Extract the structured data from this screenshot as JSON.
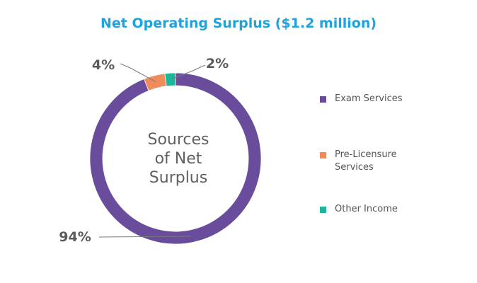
{
  "chart_data": {
    "type": "pie",
    "variant": "donut",
    "title": "Net Operating Surplus ($1.2 million)",
    "center_label": [
      "Sources",
      "of Net",
      "Surplus"
    ],
    "series": [
      {
        "name": "Exam Services",
        "value": 94,
        "label": "94%",
        "color": "#6a4c9c"
      },
      {
        "name": "Pre-Licensure Services",
        "value": 4,
        "label": "4%",
        "color": "#f08c5a"
      },
      {
        "name": "Other Income",
        "value": 2,
        "label": "2%",
        "color": "#1fb59a"
      }
    ],
    "legend_position": "right"
  }
}
